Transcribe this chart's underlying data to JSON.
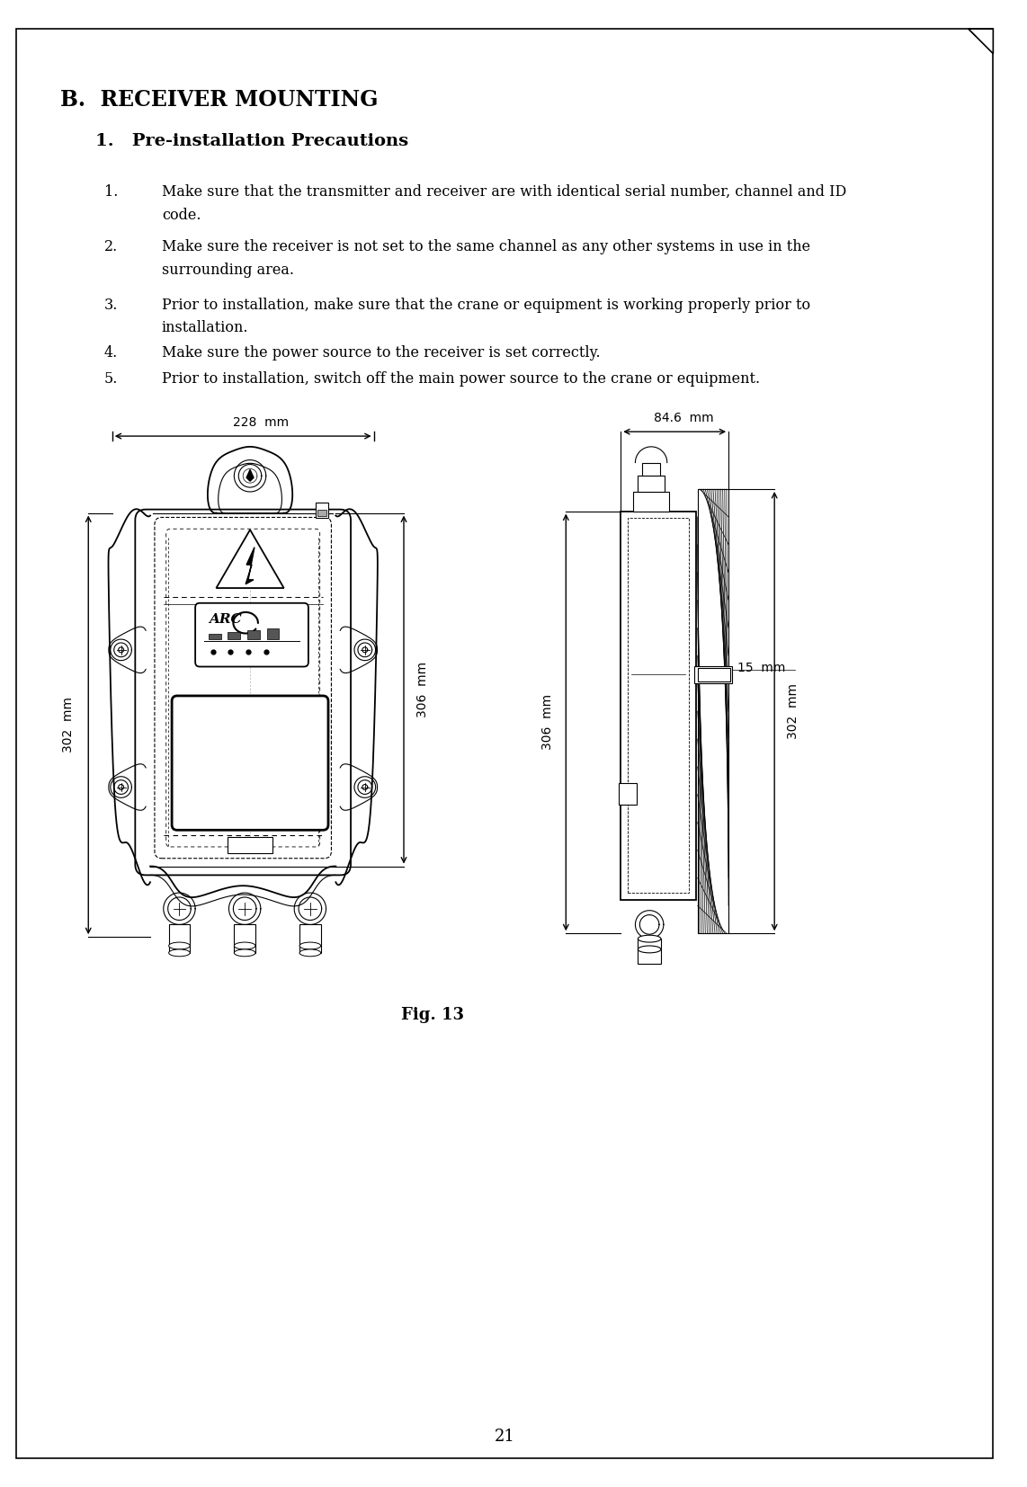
{
  "page_number": "21",
  "bg_color": "#ffffff",
  "border_color": "#000000",
  "section_title": "B.  RECEIVER MOUNTING",
  "subsection_title": "1.   Pre-installation Precautions",
  "items": [
    {
      "num": "1.",
      "line1": "Make sure that the transmitter and receiver are with identical serial number, channel and ID",
      "line2": "code."
    },
    {
      "num": "2.",
      "line1": "Make sure the receiver is not set to the same channel as any other systems in use in the",
      "line2": "surrounding area."
    },
    {
      "num": "3.",
      "line1": "Prior to installation, make sure that the crane or equipment is working properly prior to",
      "line2": "installation."
    },
    {
      "num": "4.",
      "line1": "Make sure the power source to the receiver is set correctly.",
      "line2": ""
    },
    {
      "num": "5.",
      "line1": "Prior to installation, switch off the main power source to the crane or equipment.",
      "line2": ""
    }
  ],
  "fig_caption": "Fig. 13",
  "dim_228": "228  mm",
  "dim_306": "306  mm",
  "dim_302_left": "302  mm",
  "dim_846": "84.6  mm",
  "dim_15": "15  mm",
  "dim_302_right": "302  mm"
}
